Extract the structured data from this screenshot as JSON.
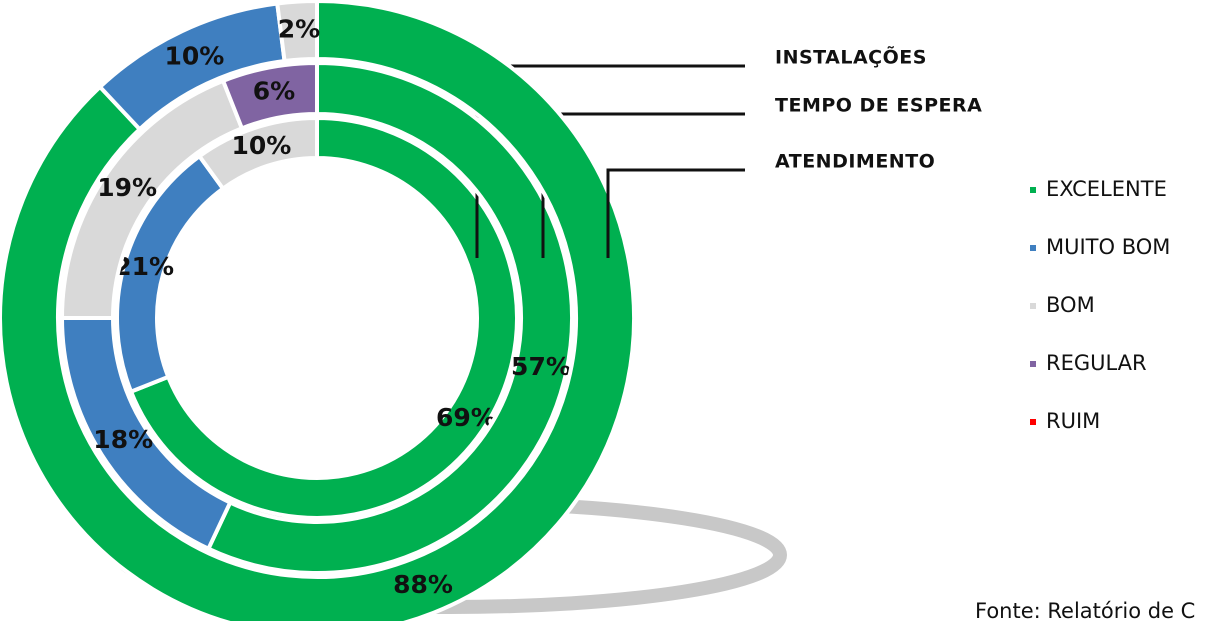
{
  "chart_data": {
    "type": "multi-donut",
    "categories": [
      "EXCELENTE",
      "MUITO BOM",
      "BOM",
      "REGULAR",
      "RUIM"
    ],
    "colors": [
      "#00b050",
      "#3f7fc0",
      "#d9d9d9",
      "#8064a2",
      "#ff0000"
    ],
    "series": [
      {
        "name": "INSTALAÇÕES",
        "values": [
          69,
          21,
          10,
          null,
          null
        ],
        "value_labels": [
          "69%",
          "21%",
          "10%",
          null,
          null
        ]
      },
      {
        "name": "TEMPO DE ESPERA",
        "values": [
          57,
          18,
          19,
          6,
          null
        ],
        "value_labels": [
          "57%",
          "18%",
          "19%",
          "6%",
          null
        ]
      },
      {
        "name": "ATENDIMENTO",
        "values": [
          88,
          10,
          2,
          null,
          null
        ],
        "value_labels": [
          "88%",
          "10%",
          "2%",
          null,
          null
        ]
      }
    ],
    "source": "Fonte: Relatório de C"
  }
}
